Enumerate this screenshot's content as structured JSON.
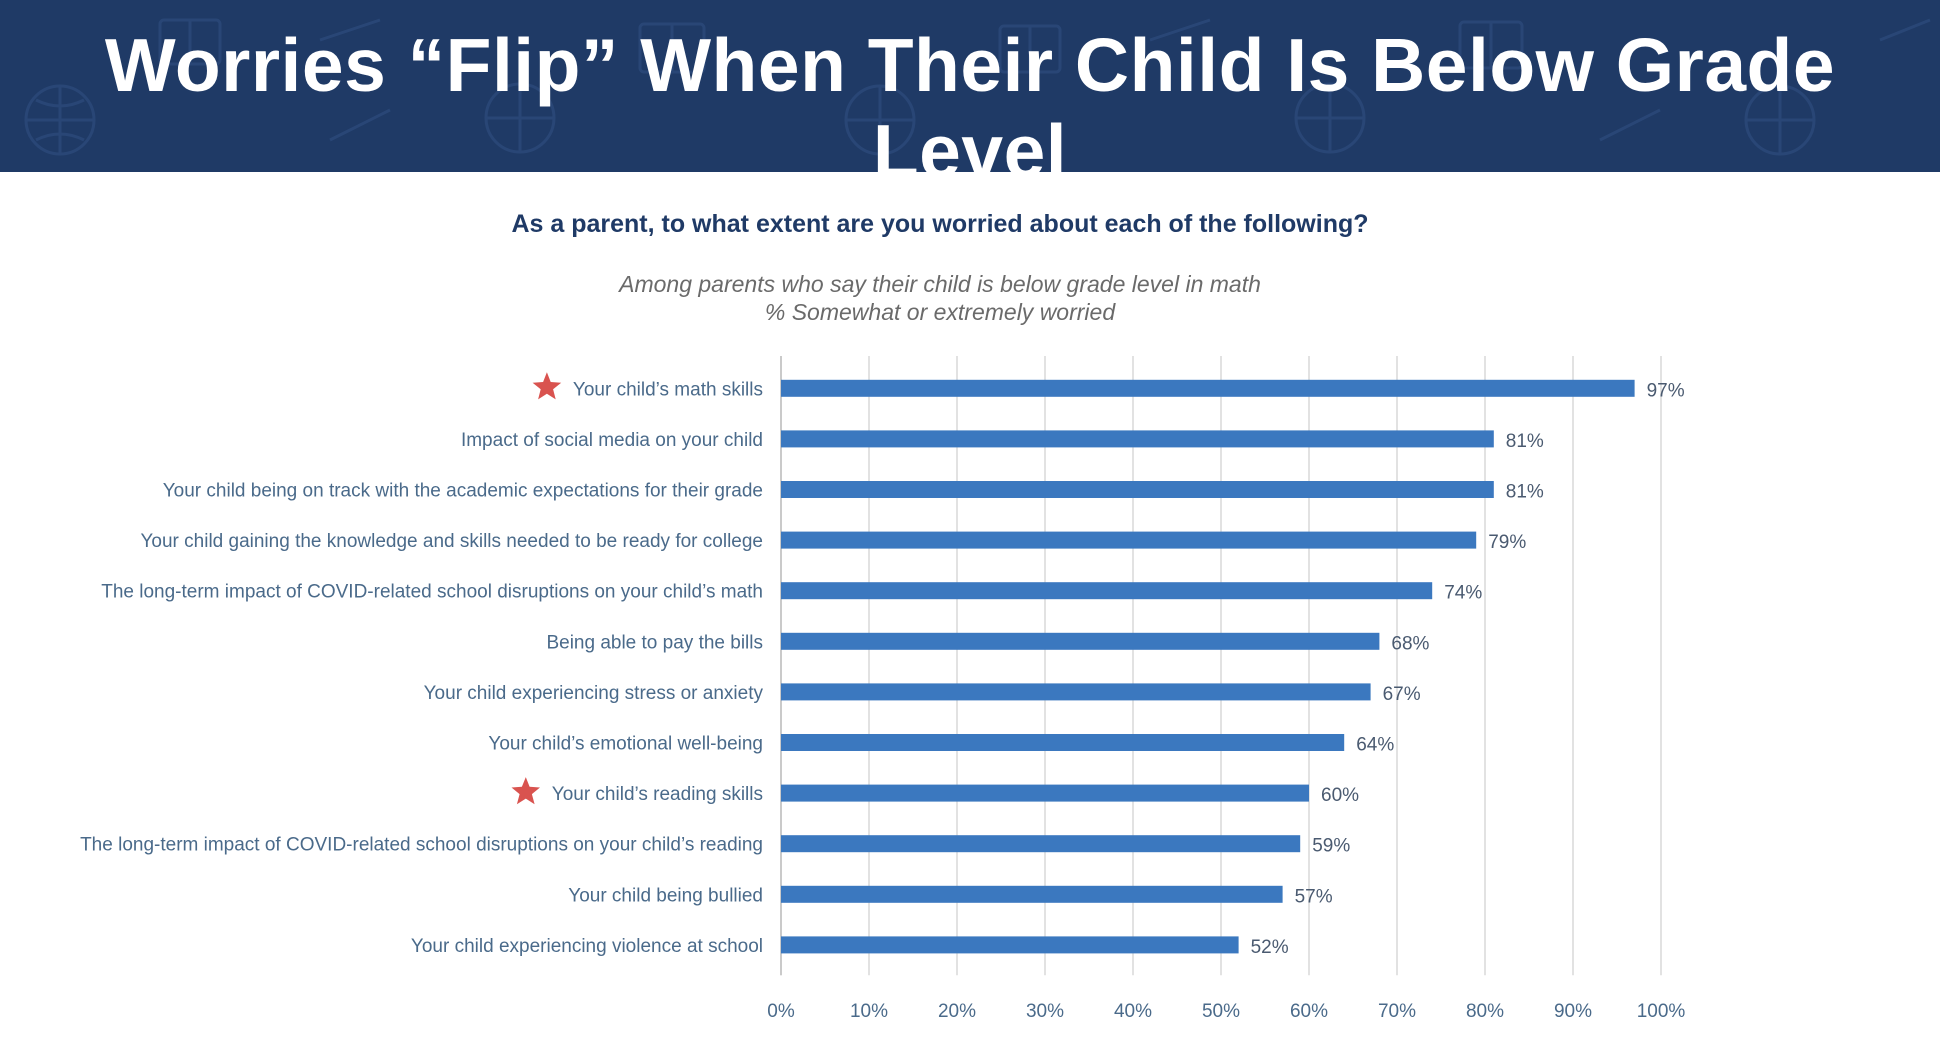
{
  "banner": {
    "title": "Worries “Flip” When Their Child Is Below Grade Level"
  },
  "colors": {
    "banner": "#1f3a66",
    "bar": "#3b78bf",
    "star": "#d9534f",
    "grid": "#d9d9d9"
  },
  "chart_data": {
    "type": "bar",
    "orientation": "horizontal",
    "title": "As a parent, to what extent are you worried about each of the following?",
    "subtitle_lines": [
      "Among parents who say their child is below grade level in math",
      "% Somewhat or extremely worried"
    ],
    "categories": [
      "Your child’s math skills",
      "Impact of social media on your child",
      "Your child being on track with the academic expectations for their grade",
      "Your child gaining the knowledge and skills needed to be ready for college",
      "The long-term impact of COVID-related school disruptions on your child’s math",
      "Being able to pay the bills",
      "Your child experiencing stress or anxiety",
      "Your child’s emotional well-being",
      "Your child’s reading skills",
      "The long-term impact of COVID-related school disruptions on your child’s reading",
      "Your child being bullied",
      "Your child experiencing  violence at school"
    ],
    "values": [
      97,
      81,
      81,
      79,
      74,
      68,
      67,
      64,
      60,
      59,
      57,
      52
    ],
    "value_labels": [
      "97%",
      "81%",
      "81%",
      "79%",
      "74%",
      "68%",
      "67%",
      "64%",
      "60%",
      "59%",
      "57%",
      "52%"
    ],
    "starred": [
      true,
      false,
      false,
      false,
      false,
      false,
      false,
      false,
      true,
      false,
      false,
      false
    ],
    "xlim": [
      0,
      100
    ],
    "xticks": [
      "0%",
      "10%",
      "20%",
      "30%",
      "40%",
      "50%",
      "60%",
      "70%",
      "80%",
      "90%",
      "100%"
    ],
    "grid": true
  }
}
